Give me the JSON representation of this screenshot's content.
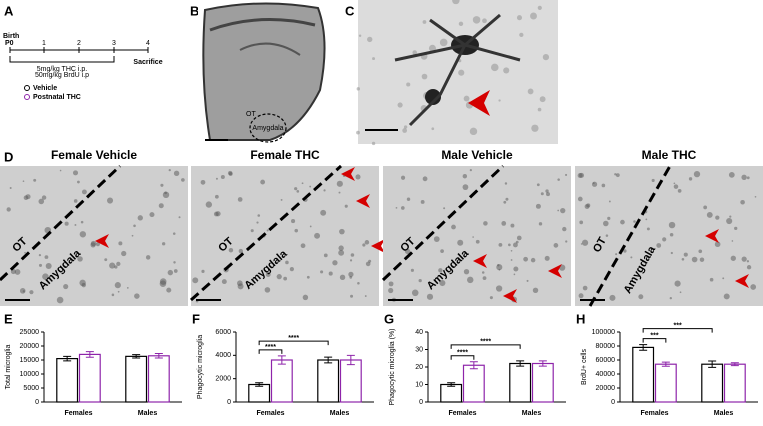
{
  "panel_labels": [
    "A",
    "B",
    "C",
    "D",
    "E",
    "F",
    "G",
    "H"
  ],
  "panel_a": {
    "birth": "Birth",
    "p0": "P0",
    "days": [
      "1",
      "2",
      "3",
      "4"
    ],
    "treatment_thc": "5mg/kg THC i.p.",
    "treatment_brdu": "50mg/kg BrdU i.p",
    "sacrifice": "Sacrifice"
  },
  "panel_b": {
    "ot": "OT",
    "amygdala": "Amygdala"
  },
  "panel_d": {
    "headers": [
      "Female Vehicle",
      "Female THC",
      "Male Vehicle",
      "Male THC"
    ],
    "ot": "OT",
    "amygdala": "Amygdala"
  },
  "chart_data": [
    {
      "type": "bar",
      "y_label": "Total microglia",
      "categories": [
        "Females",
        "Males"
      ],
      "series": [
        {
          "name": "Vehicle",
          "color": "#000000",
          "values": [
            15500,
            16300
          ],
          "errors": [
            800,
            600
          ]
        },
        {
          "name": "Postnatal THC",
          "color": "#8e24aa",
          "values": [
            17000,
            16500
          ],
          "errors": [
            1000,
            800
          ]
        }
      ],
      "ylim": [
        0,
        25000
      ],
      "yticks": [
        0,
        5000,
        10000,
        15000,
        20000,
        25000
      ]
    },
    {
      "type": "bar",
      "y_label": "Phagocytic microglia",
      "categories": [
        "Females",
        "Males"
      ],
      "series": [
        {
          "color": "#000000",
          "values": [
            1500,
            3600
          ],
          "errors": [
            150,
            250
          ]
        },
        {
          "color": "#8e24aa",
          "values": [
            3600,
            3600
          ],
          "errors": [
            350,
            400
          ]
        }
      ],
      "ylim": [
        0,
        6000
      ],
      "yticks": [
        0,
        2000,
        4000,
        6000
      ],
      "annotations": [
        "****",
        "****"
      ]
    },
    {
      "type": "bar",
      "y_label": "Phagocytic microglia (%)",
      "categories": [
        "Females",
        "Males"
      ],
      "series": [
        {
          "color": "#000000",
          "values": [
            10,
            22
          ],
          "errors": [
            1,
            1.5
          ]
        },
        {
          "color": "#8e24aa",
          "values": [
            21,
            22
          ],
          "errors": [
            2,
            1.5
          ]
        }
      ],
      "ylim": [
        0,
        40
      ],
      "yticks": [
        0,
        10,
        20,
        30,
        40
      ],
      "annotations": [
        "****",
        "****"
      ]
    },
    {
      "type": "bar",
      "y_label": "BrdU+ cells",
      "categories": [
        "Females",
        "Males"
      ],
      "series": [
        {
          "color": "#000000",
          "values": [
            78000,
            54000
          ],
          "errors": [
            4000,
            4500
          ]
        },
        {
          "color": "#8e24aa",
          "values": [
            54000,
            54000
          ],
          "errors": [
            3000,
            2000
          ]
        }
      ],
      "ylim": [
        0,
        100000
      ],
      "yticks": [
        0,
        20000,
        40000,
        60000,
        80000,
        100000
      ],
      "annotations": [
        "***",
        "***"
      ]
    }
  ]
}
